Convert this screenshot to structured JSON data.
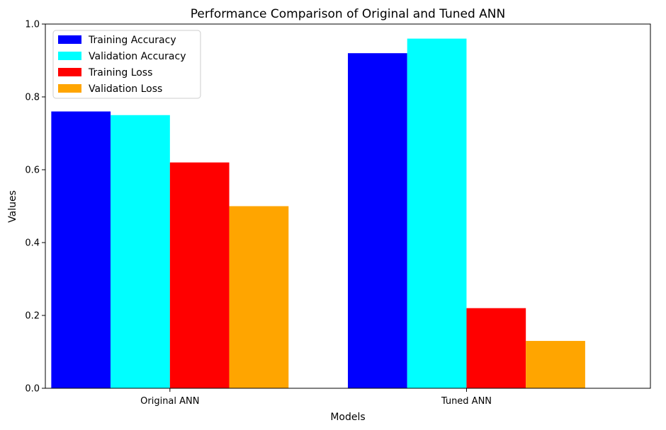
{
  "chart_data": {
    "type": "bar",
    "title": "Performance Comparison of Original and Tuned ANN",
    "xlabel": "Models",
    "ylabel": "Values",
    "categories": [
      "Original ANN",
      "Tuned ANN"
    ],
    "ylim": [
      0,
      1.0
    ],
    "yticks": [
      "0.0",
      "0.2",
      "0.4",
      "0.6",
      "0.8",
      "1.0"
    ],
    "grid": false,
    "legend_position": "top-left",
    "series": [
      {
        "name": "Training Accuracy",
        "color": "#0000ff",
        "values": [
          0.76,
          0.92
        ]
      },
      {
        "name": "Validation Accuracy",
        "color": "#00ffff",
        "values": [
          0.75,
          0.96
        ]
      },
      {
        "name": "Training Loss",
        "color": "#ff0000",
        "values": [
          0.62,
          0.22
        ]
      },
      {
        "name": "Validation Loss",
        "color": "#ffa500",
        "values": [
          0.5,
          0.13
        ]
      }
    ]
  }
}
